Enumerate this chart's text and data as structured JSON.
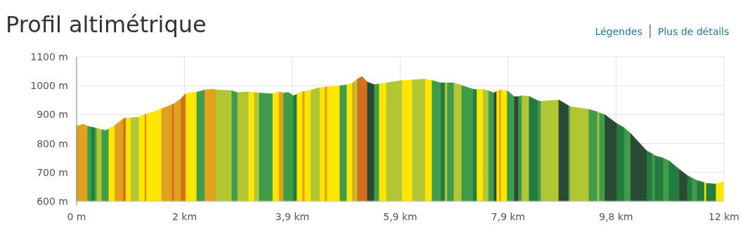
{
  "chart_data": {
    "type": "area",
    "title": "Profil altimétrique",
    "annotations": [
      "Légendes",
      "Plus de détails"
    ],
    "series": [
      {
        "color": "#e2a11d",
        "x": [
          0,
          0.12,
          0.2,
          null,
          0.69,
          0.85,
          null,
          1.54,
          1.74,
          null,
          1.77,
          1.9,
          null,
          2.33,
          2.45,
          2.54,
          null,
          3.68,
          3.77,
          null,
          4.11,
          4.16,
          null,
          4.52,
          4.57,
          null,
          5.02,
          5.07,
          null,
          7.7,
          7.74
        ],
        "values": [
          860,
          867,
          860,
          null,
          862,
          885,
          null,
          920,
          935,
          null,
          937,
          955,
          null,
          985,
          988,
          986,
          null,
          979,
          975,
          null,
          979,
          980,
          null,
          995,
          997,
          null,
          1008,
          1015,
          null,
          985,
          985
        ]
      },
      {
        "color": "#d2701c",
        "x": [
          0.85,
          0.9,
          null,
          1.24,
          1.27,
          null,
          1.74,
          1.77,
          null,
          1.9,
          1.99,
          null,
          5.11,
          5.2,
          5.3
        ],
        "values": [
          885,
          889,
          null,
          900,
          902,
          null,
          935,
          937,
          null,
          955,
          973,
          null,
          1022,
          1032,
          1013
        ]
      },
      {
        "color": "#ffe600",
        "x": [
          0.58,
          0.69,
          null,
          0.9,
          0.99,
          null,
          1.13,
          1.24,
          null,
          1.27,
          1.38,
          1.54,
          null,
          1.99,
          2.19,
          null,
          3.13,
          3.24,
          null,
          3.57,
          3.68,
          null,
          4.01,
          4.11,
          null,
          4.16,
          4.27,
          null,
          4.43,
          4.52,
          null,
          4.57,
          4.8,
          null,
          4.92,
          5.02,
          null,
          5.51,
          5.65,
          null,
          5.93,
          6.12,
          null,
          6.35,
          6.48,
          null,
          7.29,
          7.41,
          null,
          7.65,
          7.7,
          null,
          7.74,
          7.85,
          null,
          11.44,
          11.48,
          null,
          11.65,
          11.79
        ],
        "values": [
          850,
          862,
          null,
          889,
          889,
          null,
          891,
          900,
          null,
          902,
          908,
          920,
          null,
          973,
          978,
          null,
          979,
          977,
          null,
          972,
          979,
          null,
          970,
          979,
          null,
          980,
          985,
          null,
          993,
          995,
          null,
          997,
          1000,
          null,
          1003,
          1008,
          null,
          1006,
          1010,
          null,
          1018,
          1020,
          null,
          1023,
          1018,
          null,
          987,
          988,
          null,
          980,
          985,
          null,
          985,
          983,
          null,
          665,
          662,
          null,
          660,
          667
        ]
      },
      {
        "color": "#b2c634",
        "x": [
          0.36,
          0.46,
          null,
          0.99,
          1.13,
          null,
          2.54,
          2.83,
          null,
          2.93,
          3.13,
          null,
          3.24,
          3.33,
          null,
          4.27,
          4.43,
          null,
          5.07,
          5.11,
          null,
          5.65,
          5.93,
          null,
          6.12,
          6.35,
          null,
          6.71,
          6.76,
          null,
          6.87,
          7.02,
          null,
          7.41,
          7.51,
          null,
          8.11,
          8.25,
          null,
          8.46,
          8.79,
          null,
          8.99,
          9.34,
          null,
          9.49,
          9.53
        ],
        "values": [
          853,
          848,
          null,
          889,
          891,
          null,
          986,
          983,
          null,
          976,
          979,
          null,
          977,
          975,
          null,
          985,
          993,
          null,
          1015,
          1022,
          null,
          1010,
          1018,
          null,
          1020,
          1023,
          null,
          1010,
          1010,
          null,
          1010,
          1001,
          null,
          988,
          982,
          null,
          965,
          963,
          null,
          946,
          951,
          null,
          928,
          918,
          null,
          910,
          906
        ]
      },
      {
        "color": "#3f9c48",
        "x": [
          0.2,
          0.27,
          null,
          0.32,
          0.36,
          null,
          0.46,
          0.53,
          0.58,
          null,
          2.19,
          2.33,
          null,
          2.83,
          2.93,
          null,
          3.33,
          3.57,
          null,
          3.77,
          3.86,
          3.95,
          null,
          4.8,
          4.92,
          null,
          5.42,
          5.51,
          null,
          6.48,
          6.64,
          null,
          6.76,
          6.87,
          null,
          7.02,
          7.23,
          null,
          7.51,
          7.61,
          null,
          7.85,
          7.98,
          null,
          8.05,
          8.11,
          null,
          8.41,
          8.46,
          null,
          8.96,
          8.99,
          null,
          9.34,
          9.49,
          null,
          9.53,
          9.63,
          null,
          9.98,
          10.1,
          null,
          10.49,
          10.54,
          null,
          10.69,
          10.8,
          null,
          11.22,
          11.31
        ],
        "values": [
          860,
          857,
          null,
          855,
          853,
          null,
          848,
          845,
          850,
          null,
          978,
          985,
          null,
          983,
          976,
          null,
          975,
          972,
          null,
          975,
          977,
          965,
          null,
          1000,
          1003,
          null,
          1004,
          1006,
          null,
          1018,
          1010,
          null,
          1010,
          1010,
          null,
          1001,
          988,
          null,
          982,
          975,
          null,
          983,
          962,
          null,
          962,
          965,
          null,
          948,
          946,
          null,
          932,
          928,
          null,
          918,
          910,
          null,
          906,
          900,
          null,
          855,
          835,
          null,
          765,
          758,
          null,
          750,
          740,
          null,
          680,
          672
        ]
      },
      {
        "color": "#237c3d",
        "x": [
          0.27,
          0.32,
          null,
          3.95,
          4.01,
          null,
          6.64,
          6.71,
          null,
          7.23,
          7.29,
          null,
          8.25,
          8.41,
          null,
          9.84,
          9.98,
          null,
          10.39,
          10.49,
          null,
          10.54,
          10.69,
          null,
          10.8,
          10.99,
          null,
          11.13,
          11.22,
          null,
          11.31,
          11.44,
          null,
          11.48,
          11.65
        ],
        "values": [
          857,
          855,
          null,
          965,
          970,
          null,
          1010,
          1010,
          null,
          988,
          987,
          null,
          963,
          948,
          null,
          870,
          855,
          null,
          775,
          765,
          null,
          758,
          750,
          null,
          740,
          710,
          null,
          690,
          680,
          null,
          672,
          665,
          null,
          662,
          660
        ]
      },
      {
        "color": "#2b4a33",
        "x": [
          5.3,
          5.42,
          null,
          7.61,
          7.65,
          null,
          7.98,
          8.05,
          null,
          8.79,
          8.96,
          null,
          9.63,
          9.84,
          null,
          10.1,
          10.39,
          null,
          10.99,
          11.13
        ],
        "values": [
          1013,
          1004,
          null,
          975,
          980,
          null,
          962,
          962,
          null,
          951,
          932,
          null,
          900,
          870,
          null,
          835,
          775,
          null,
          710,
          690
        ]
      }
    ],
    "xlim": [
      0,
      11.8
    ],
    "xticks": [
      {
        "value": 0,
        "label": "0 m"
      },
      {
        "value": 1.967,
        "label": "2 km"
      },
      {
        "value": 3.933,
        "label": "3,9 km"
      },
      {
        "value": 5.9,
        "label": "5,9 km"
      },
      {
        "value": 7.867,
        "label": "7,9 km"
      },
      {
        "value": 9.833,
        "label": "9,8 km"
      },
      {
        "value": 11.8,
        "label": "12 km"
      }
    ],
    "ylim": [
      600,
      1100
    ],
    "yticks": [
      {
        "value": 600,
        "label": "600 m"
      },
      {
        "value": 700,
        "label": "700 m"
      },
      {
        "value": 800,
        "label": "800 m"
      },
      {
        "value": 900,
        "label": "900 m"
      },
      {
        "value": 1000,
        "label": "1000 m"
      },
      {
        "value": 1100,
        "label": "1100 m"
      }
    ],
    "grid": true
  }
}
